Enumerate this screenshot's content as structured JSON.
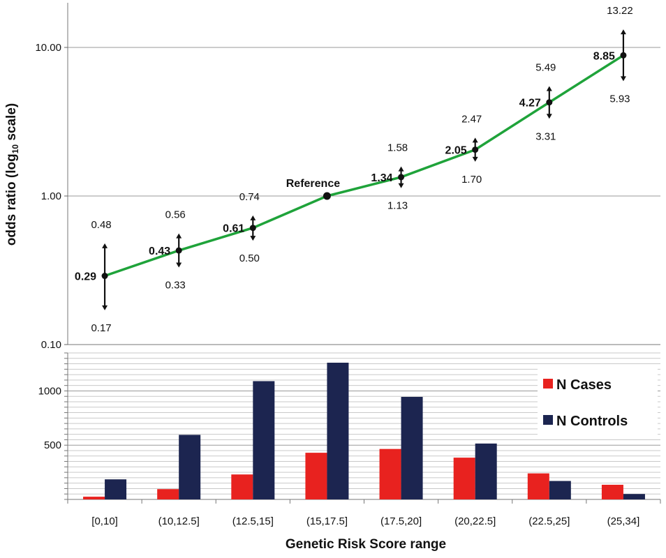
{
  "chart_data": [
    {
      "type": "line",
      "ylabel": "odds ratio (log",
      "ylabel_sub": "10",
      "ylabel_tail": " scale)",
      "yscale": "log",
      "ylim": [
        0.1,
        20
      ],
      "yticks": [
        "0.10",
        "1.00",
        "10.00"
      ],
      "categories": [
        "[0,10]",
        "(10,12.5]",
        "(12.5,15]",
        "(15,17.5]",
        "(17.5,20]",
        "(20,22.5]",
        "(22.5,25]",
        "(25,34]"
      ],
      "reference_label": "Reference",
      "series": [
        {
          "values": [
            0.29,
            0.43,
            0.61,
            1.0,
            1.34,
            2.05,
            4.27,
            8.85
          ],
          "value_labels": [
            "0.29",
            "0.43",
            "0.61",
            "",
            "1.34",
            "2.05",
            "4.27",
            "8.85"
          ],
          "upper": [
            0.48,
            0.56,
            0.74,
            null,
            1.58,
            2.47,
            5.49,
            13.22
          ],
          "upper_labels": [
            "0.48",
            "0.56",
            "0.74",
            "",
            "1.58",
            "2.47",
            "5.49",
            "13.22"
          ],
          "lower": [
            0.17,
            0.33,
            0.5,
            null,
            1.13,
            1.7,
            3.31,
            5.93
          ],
          "lower_labels": [
            "0.17",
            "0.33",
            "0.50",
            "",
            "1.13",
            "1.70",
            "3.31",
            "5.93"
          ]
        }
      ],
      "line_color": "#1fa33a",
      "grid": true
    },
    {
      "type": "bar",
      "xlabel": "Genetic Risk Score range",
      "ylim": [
        0,
        1350
      ],
      "yticks": [
        "500",
        "1000"
      ],
      "ytick_values": [
        500,
        1000
      ],
      "grid": true,
      "categories": [
        "[0,10]",
        "(10,12.5]",
        "(12.5,15]",
        "(15,17.5]",
        "(17.5,20]",
        "(20,22.5]",
        "(22.5,25]",
        "(25,34]"
      ],
      "series": [
        {
          "name": "N Cases",
          "color": "#e8221f",
          "values": [
            25,
            95,
            230,
            430,
            465,
            385,
            240,
            135
          ]
        },
        {
          "name": "N Controls",
          "color": "#1c2550",
          "values": [
            185,
            595,
            1090,
            1260,
            945,
            515,
            170,
            50
          ]
        }
      ],
      "legend_position": "top-right"
    }
  ]
}
